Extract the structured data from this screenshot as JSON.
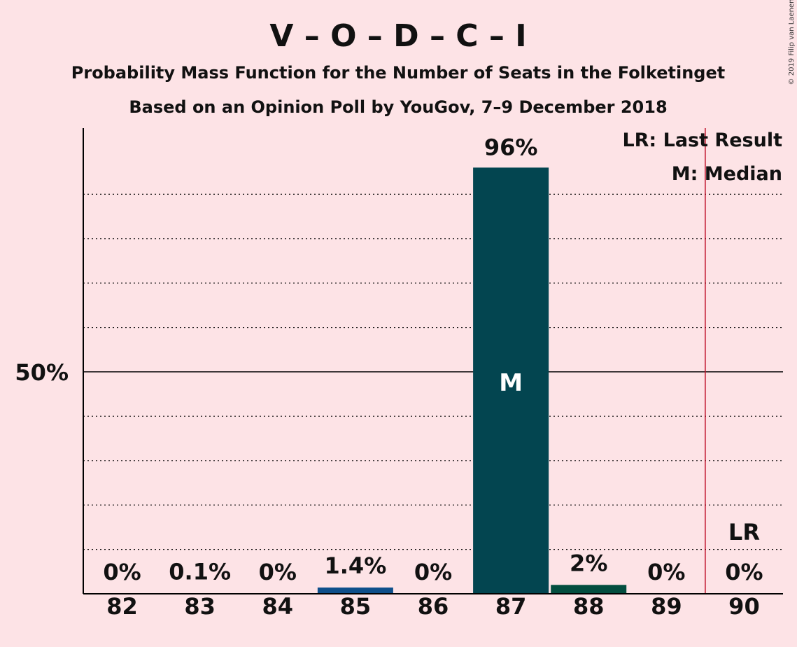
{
  "header": {
    "title": "V – O – D – C – I",
    "subtitle1": "Probability Mass Function for the Number of Seats in the Folketinget",
    "subtitle2": "Based on an Opinion Poll by YouGov, 7–9 December 2018",
    "copyright": "© 2019 Filip van Laenen"
  },
  "legend": {
    "lr": "LR: Last Result",
    "median": "M: Median"
  },
  "chart_data": {
    "type": "bar",
    "categories": [
      "82",
      "83",
      "84",
      "85",
      "86",
      "87",
      "88",
      "89",
      "90"
    ],
    "values": [
      0,
      0.1,
      0,
      1.4,
      0,
      96,
      2,
      0,
      0
    ],
    "value_labels": [
      "0%",
      "0.1%",
      "0%",
      "1.4%",
      "0%",
      "96%",
      "2%",
      "0%",
      "0%"
    ],
    "bar_colors": [
      "#0e4f8a",
      "#0e4f8a",
      "#0e4f8a",
      "#0e4f8a",
      "#0e4f8a",
      "#034550",
      "#034e3f",
      "#034e3f",
      "#034e3f"
    ],
    "ylim": [
      0,
      105
    ],
    "y_gridlines": [
      10,
      20,
      30,
      40,
      50,
      60,
      70,
      80,
      90
    ],
    "y_major": 50,
    "y_tick_label": "50%",
    "median_category": "87",
    "median_label": "M",
    "last_result_category": "90",
    "last_result_label": "LR",
    "last_result_line_color": "#c0142c",
    "background": "#fde3e6"
  }
}
